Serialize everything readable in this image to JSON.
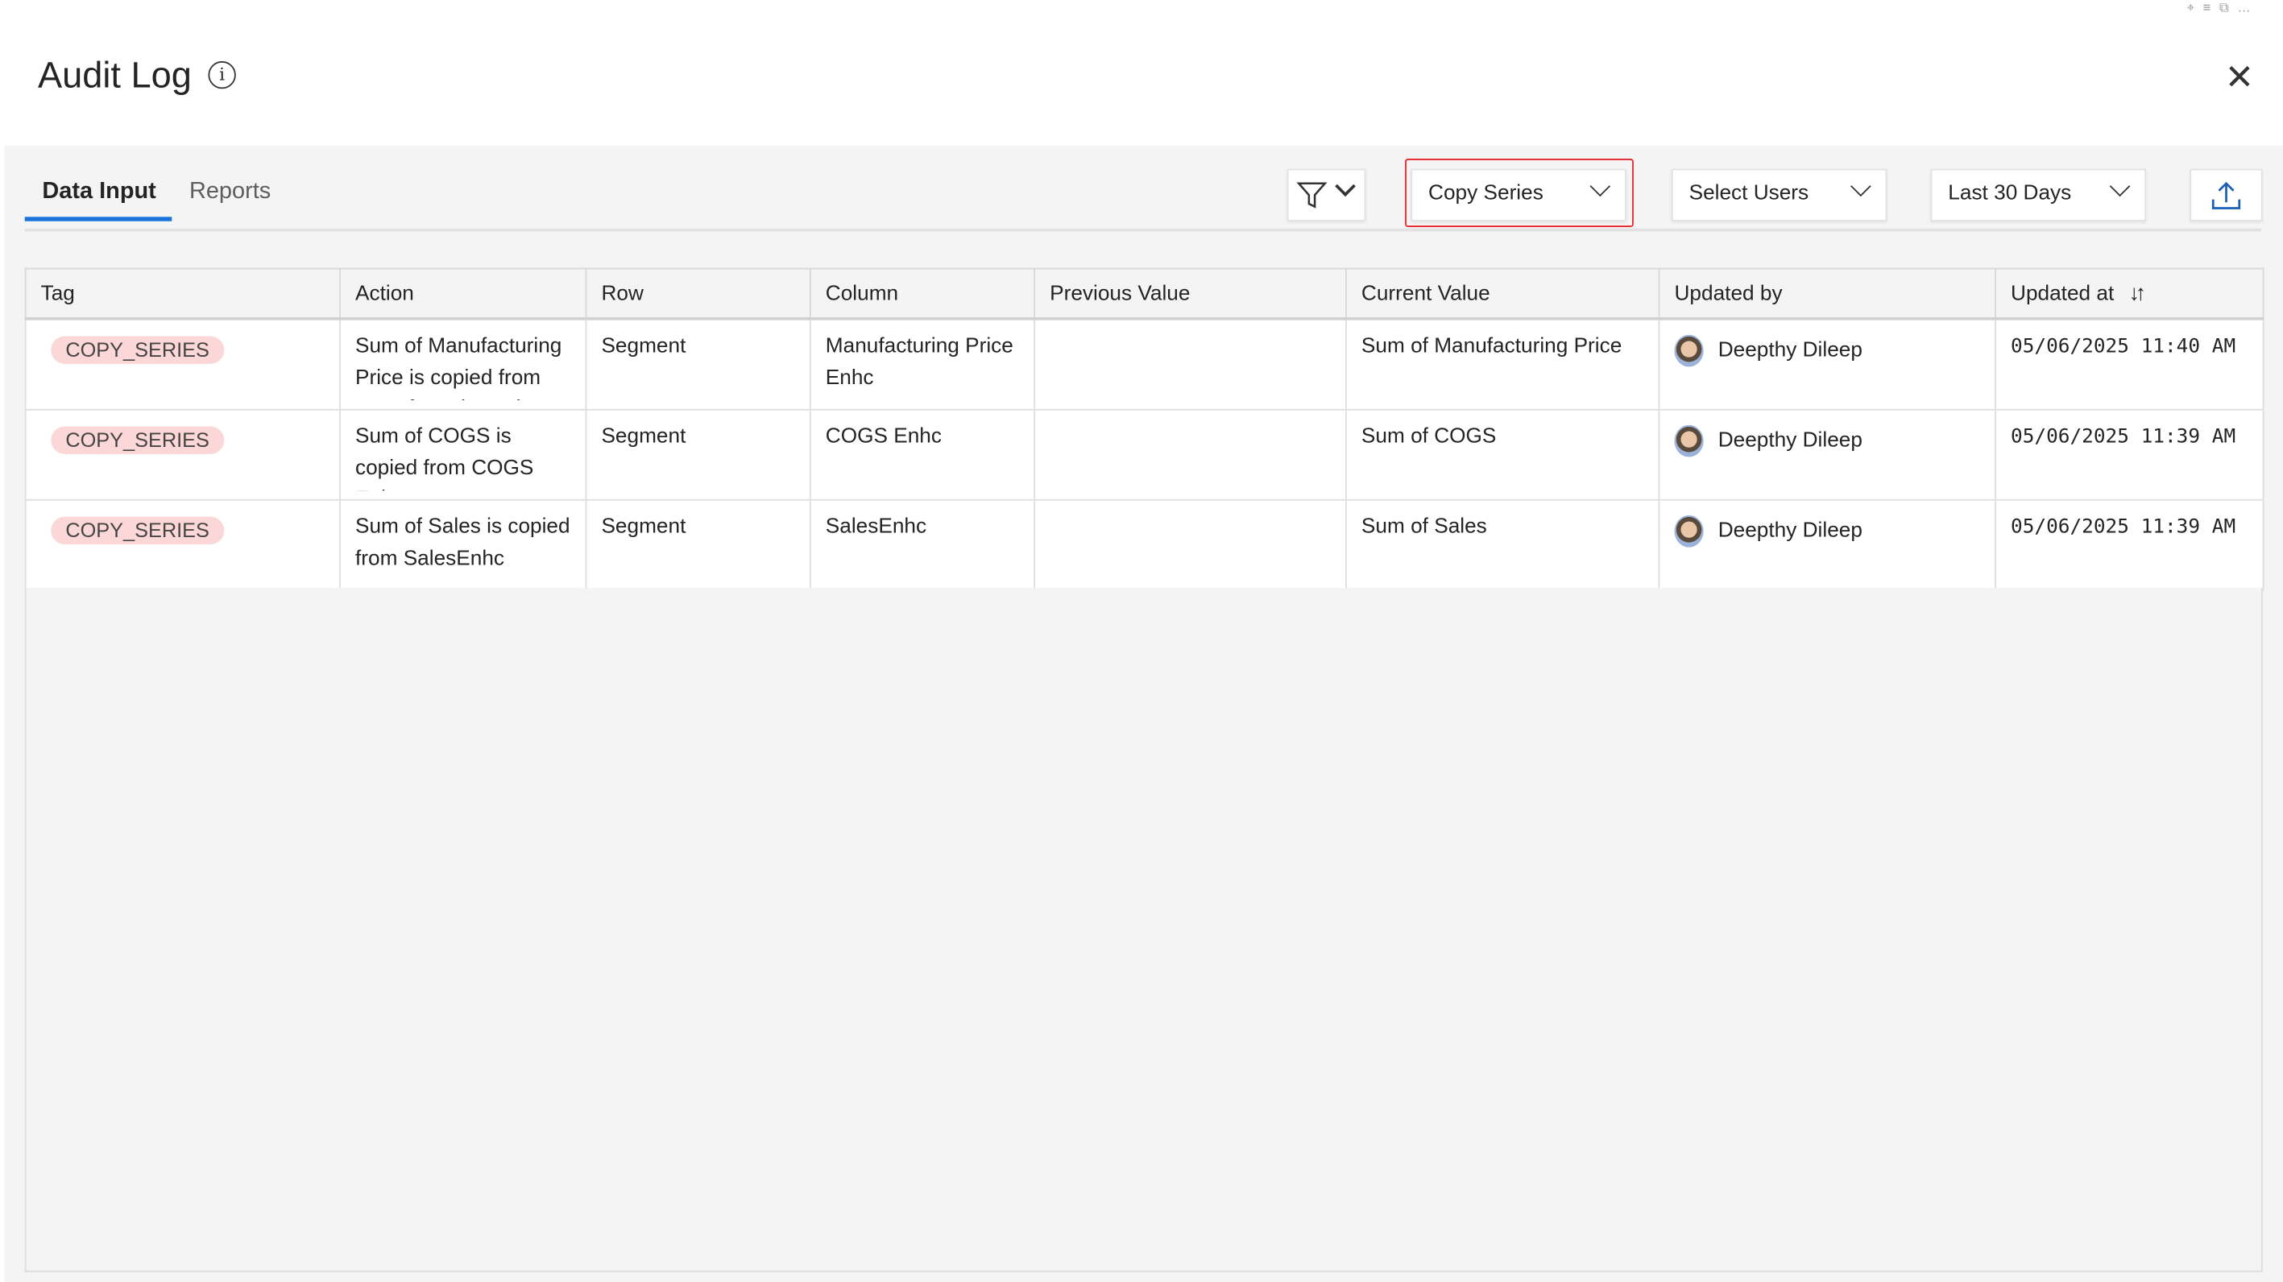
{
  "header": {
    "title": "Audit Log",
    "info_icon": "info-icon",
    "close_icon": "close-icon"
  },
  "tabs": [
    {
      "label": "Data Input",
      "active": true
    },
    {
      "label": "Reports",
      "active": false
    }
  ],
  "toolbar": {
    "filter_icon": "filter-icon",
    "action_dropdown": {
      "value": "Copy Series",
      "highlight_color": "#e8252a"
    },
    "users_dropdown": {
      "value": "Select Users"
    },
    "date_dropdown": {
      "value": "Last 30 Days"
    },
    "export_icon": "upload-icon"
  },
  "table": {
    "columns": [
      "Tag",
      "Action",
      "Row",
      "Column",
      "Previous Value",
      "Current Value",
      "Updated by",
      "Updated at"
    ],
    "sort_icon": "↓↑",
    "rows": [
      {
        "tag": "COPY_SERIES",
        "action": "Sum of Manufacturing Price is copied from Manufacturing Price",
        "row": "Segment",
        "column": "Manufacturing Price Enhc",
        "previous": "",
        "current": "Sum of Manufacturing Price",
        "user": "Deepthy Dileep",
        "time": "05/06/2025 11:40 AM"
      },
      {
        "tag": "COPY_SERIES",
        "action": "Sum of COGS is copied from COGS Enhc",
        "row": "Segment",
        "column": "COGS Enhc",
        "previous": "",
        "current": "Sum of COGS",
        "user": "Deepthy Dileep",
        "time": "05/06/2025 11:39 AM"
      },
      {
        "tag": "COPY_SERIES",
        "action": "Sum of Sales is copied from SalesEnhc",
        "row": "Segment",
        "column": "SalesEnhc",
        "previous": "",
        "current": "Sum of Sales",
        "user": "Deepthy Dileep",
        "time": "05/06/2025 11:39 AM"
      }
    ]
  },
  "colors": {
    "accent": "#1a73d8",
    "tag_bg": "#fcd7d7",
    "background": "#f4f4f4"
  }
}
